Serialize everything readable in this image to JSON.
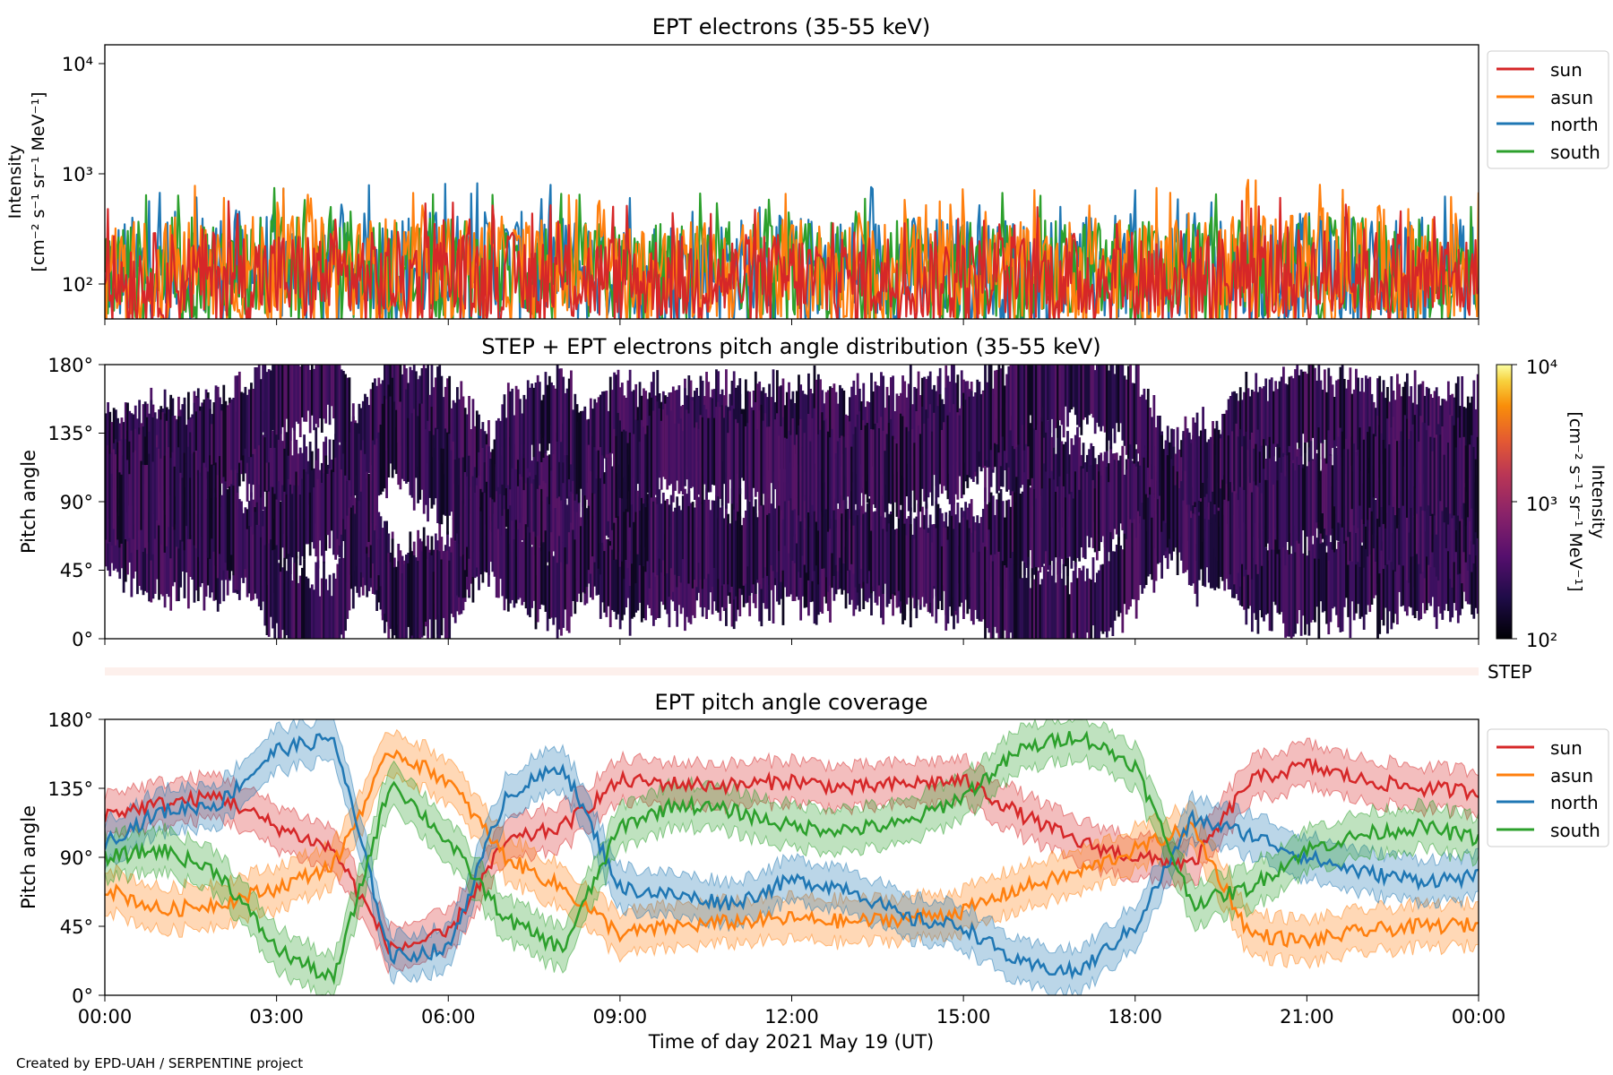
{
  "footer": "Created by EPD-UAH / SERPENTINE project",
  "xaxis": {
    "label": "Time of day 2021 May 19 (UT)",
    "ticks": [
      "00:00",
      "03:00",
      "06:00",
      "09:00",
      "12:00",
      "15:00",
      "18:00",
      "21:00",
      "00:00"
    ]
  },
  "step_label": "STEP",
  "colors": {
    "sun": "#d62728",
    "asun": "#ff7f0e",
    "north": "#1f77b4",
    "south": "#2ca02c",
    "step_bar": "#fdf0ec"
  },
  "chart_data": [
    {
      "type": "line",
      "title": "EPT electrons (35-55 keV)",
      "ylabel_line1": "Intensity",
      "ylabel_line2": "[cm⁻² s⁻¹ sr⁻¹ MeV⁻¹]",
      "yscale": "log",
      "ylim": [
        55,
        14000
      ],
      "yticks": [
        "10²",
        "10³",
        "10⁴"
      ],
      "legend_position": "outside-right-top",
      "x_hours": [
        0,
        2,
        4,
        6,
        8,
        10,
        12,
        14,
        16,
        18,
        20,
        22,
        24
      ],
      "series": [
        {
          "name": "sun",
          "typical_max": [
            300,
            350,
            320,
            330,
            310,
            300,
            320,
            330,
            310,
            340,
            360,
            350,
            300
          ],
          "typical_min": [
            60,
            60,
            60,
            60,
            60,
            60,
            60,
            60,
            60,
            60,
            60,
            60,
            60
          ]
        },
        {
          "name": "asun",
          "typical_max": [
            420,
            470,
            430,
            450,
            420,
            400,
            410,
            430,
            420,
            440,
            520,
            550,
            500
          ],
          "typical_min": [
            60,
            60,
            60,
            60,
            60,
            60,
            60,
            60,
            60,
            60,
            60,
            60,
            60
          ]
        },
        {
          "name": "north",
          "typical_max": [
            430,
            520,
            470,
            520,
            460,
            430,
            450,
            450,
            420,
            460,
            480,
            460,
            420
          ],
          "typical_min": [
            60,
            60,
            60,
            60,
            60,
            60,
            60,
            60,
            60,
            60,
            60,
            60,
            60
          ]
        },
        {
          "name": "south",
          "typical_max": [
            400,
            450,
            420,
            430,
            400,
            390,
            400,
            420,
            400,
            420,
            440,
            430,
            400
          ],
          "typical_min": [
            60,
            60,
            60,
            60,
            60,
            60,
            60,
            60,
            60,
            60,
            60,
            60,
            60
          ]
        }
      ]
    },
    {
      "type": "heatmap",
      "title": "STEP + EPT electrons pitch angle distribution (35-55 keV)",
      "ylabel": "Pitch angle",
      "ylim": [
        0,
        180
      ],
      "yticks": [
        "0°",
        "45°",
        "90°",
        "135°",
        "180°"
      ],
      "colorbar": {
        "label_line1": "Intensity",
        "label_line2": "[cm⁻² s⁻¹ sr⁻¹ MeV⁻¹]",
        "scale": "log",
        "range": [
          100,
          10000
        ],
        "ticks": [
          "10²",
          "10³",
          "10⁴"
        ],
        "colormap": "inferno"
      }
    },
    {
      "type": "line",
      "title": "EPT pitch angle coverage",
      "ylabel": "Pitch angle",
      "ylim": [
        0,
        180
      ],
      "yticks": [
        "0°",
        "45°",
        "90°",
        "135°",
        "180°"
      ],
      "legend_position": "outside-right-top",
      "x_hours": [
        0,
        1,
        2,
        3,
        4,
        5,
        6,
        7,
        8,
        9,
        10,
        11,
        12,
        13,
        14,
        15,
        16,
        17,
        18,
        19,
        20,
        21,
        22,
        23,
        24
      ],
      "series": [
        {
          "name": "sun",
          "values": [
            118,
            125,
            130,
            110,
            95,
            30,
            40,
            100,
            110,
            140,
            138,
            137,
            140,
            135,
            138,
            140,
            118,
            100,
            90,
            85,
            140,
            150,
            140,
            135,
            133
          ]
        },
        {
          "name": "asun",
          "values": [
            70,
            55,
            60,
            70,
            85,
            160,
            140,
            90,
            70,
            40,
            45,
            48,
            50,
            48,
            50,
            55,
            70,
            80,
            95,
            110,
            40,
            35,
            42,
            45,
            46
          ]
        },
        {
          "name": "north",
          "values": [
            100,
            120,
            125,
            160,
            168,
            25,
            30,
            130,
            150,
            70,
            65,
            60,
            75,
            70,
            50,
            45,
            20,
            15,
            45,
            115,
            105,
            90,
            80,
            75,
            77
          ]
        },
        {
          "name": "south",
          "values": [
            90,
            95,
            80,
            30,
            10,
            140,
            100,
            50,
            30,
            110,
            125,
            120,
            110,
            108,
            112,
            130,
            160,
            170,
            150,
            60,
            70,
            95,
            105,
            110,
            102
          ]
        }
      ],
      "band_halfwidth": 14
    }
  ]
}
